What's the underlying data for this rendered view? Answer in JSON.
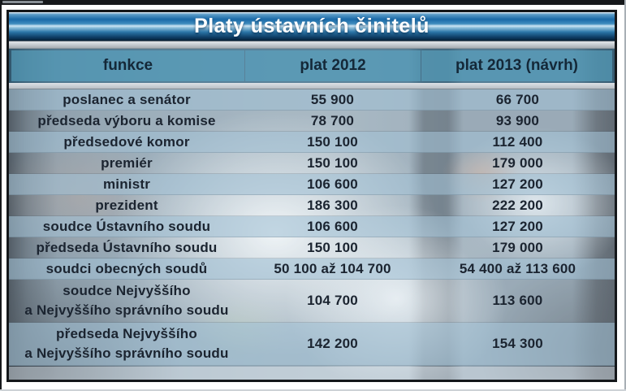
{
  "chart_data": {
    "type": "table",
    "title": "Platy ústavních činitelů",
    "columns": [
      "funkce",
      "plat 2012",
      "plat 2013 (návrh)"
    ],
    "rows": [
      [
        "poslanec a senátor",
        "55 900",
        "66 700"
      ],
      [
        "předseda výboru a komise",
        "78 700",
        "93 900"
      ],
      [
        "předsedové komor",
        "150 100",
        "112 400"
      ],
      [
        "premiér",
        "150 100",
        "179 000"
      ],
      [
        "ministr",
        "106 600",
        "127 200"
      ],
      [
        "prezident",
        "186 300",
        "222 200"
      ],
      [
        "soudce Ústavního soudu",
        "106 600",
        "127 200"
      ],
      [
        "předseda Ústavního soudu",
        "150 100",
        "179 000"
      ],
      [
        "soudci obecných soudů",
        "50 100 až 104 700",
        "54 400 až 113 600"
      ],
      [
        "soudce Nejvyššího\na Nejvyššího správního soudu",
        "104 700",
        "113 600"
      ],
      [
        "předseda Nejvyššího\na Nejvyššího správního soudu",
        "142 200",
        "154 300"
      ]
    ],
    "layout": {
      "striped_rows": true,
      "legend_position": "none",
      "grid": false
    }
  },
  "colors": {
    "title_bar_blue": "#1a6aa8",
    "header_teal": "#5596b4",
    "row_stripe_light": "#aac6d6",
    "text_dark": "#1b2430",
    "title_text": "#ffffff",
    "frame_border": "#14171a"
  }
}
